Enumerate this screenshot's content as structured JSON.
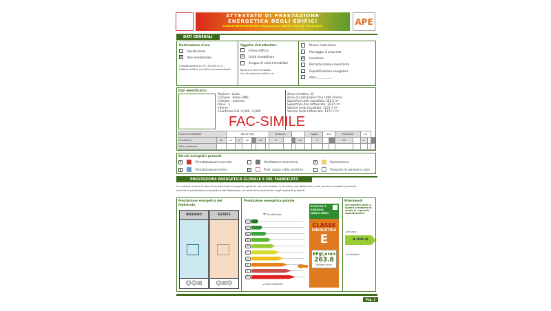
{
  "header": {
    "title_line1": "ATTESTATO DI PRESTAZIONE",
    "title_line2": "ENERGETICA DEGLI EDIFICI",
    "code_line": "CODICE IDENTIFICATIVO: xxxxxxxxxxxx  VALIDO FINO AL: 31/12/2017",
    "logo": "APE"
  },
  "dati_generali": {
    "tab": "DATI GENERALI",
    "destinazione": {
      "title": "Destinazione d'uso",
      "options": [
        {
          "label": "Residenziale",
          "checked": false
        },
        {
          "label": "Non residenziale",
          "checked": true
        }
      ],
      "classification": "Classificazione D.P.R. 412/93: E.2 -",
      "classification2": "Edificio adibito ad ufficio ed assimilabili"
    },
    "oggetto": {
      "title": "Oggetto dell'attestato",
      "options": [
        {
          "label": "Intero edificio",
          "checked": false
        },
        {
          "label": "Unità immobiliare",
          "checked": true
        },
        {
          "label": "Gruppo di unità immobiliari",
          "checked": false
        }
      ],
      "note1": "Numero di unità immobiliari",
      "note2": "di cui è composto l'edificio: nd"
    },
    "motivo": {
      "options": [
        {
          "label": "Nuova costruzione",
          "checked": false
        },
        {
          "label": "Passaggio di proprietà",
          "checked": false
        },
        {
          "label": "Locazione",
          "checked": true
        },
        {
          "label": "Ristrutturazione importante",
          "checked": false
        },
        {
          "label": "Riqualificazione energetica",
          "checked": false
        },
        {
          "label": "Altro: __________",
          "checked": false
        }
      ]
    }
  },
  "identificativi": {
    "title": "Dati identificativi",
    "left": [
      "Regione : Lazio",
      "Comune : Roma (RM)",
      "Indirizzo : xxxxxxx",
      "Piano : x",
      "Interno :",
      "Coordinate GIS: 0,000 - 0,000"
    ],
    "right": [
      "Zona climatica : D",
      "Anno di costruzione: fino 1900 (stimo)",
      "Superficie utile riscaldata: 303.5 m²",
      "Superficie utile raffrescata: 303.5 m²",
      "Volume lordo riscaldato: 1272.7 m³",
      "Volume lordo raffrescato: 1272.7 m³"
    ],
    "watermark": "FAC-SIMILE",
    "catasto_row": [
      "Comune catastale",
      "Roma (RM)",
      "Sezione",
      "",
      "Foglio",
      "xxx",
      "Particella",
      "xx"
    ],
    "subalterni_row": [
      "Subalterni",
      "da",
      "xx",
      "a",
      "xx",
      "",
      "da",
      "",
      "a",
      "",
      "",
      "da",
      "",
      "a",
      "",
      "da",
      "",
      "a",
      ""
    ],
    "altri_label": "Altri subalterni"
  },
  "servizi": {
    "title": "Servizi energetici presenti",
    "items": [
      {
        "label": "Climatizzazione invernale",
        "checked": true,
        "icon": "radiator-icon"
      },
      {
        "label": "Ventilazione meccanica",
        "checked": false,
        "icon": "fan-icon"
      },
      {
        "label": "Illuminazione",
        "checked": true,
        "icon": "lightbulb-icon"
      },
      {
        "label": "Climatizzazione estiva",
        "checked": true,
        "icon": "air-conditioner-icon"
      },
      {
        "label": "Prod. acqua calda sanitaria",
        "checked": true,
        "icon": "faucet-icon"
      },
      {
        "label": "Trasporto di persone o cose",
        "checked": false,
        "icon": "elevator-icon"
      }
    ]
  },
  "prestazione": {
    "tab": "PRESTAZIONE ENERGETICA GLOBALE  E DEL FABBRICATO",
    "intro1": "La sezione riporta l'indice di prestazione energetica globale non rinnovabile in funzione del fabbricato e dei servizi energetici presenti,",
    "intro2": "nonché la prestazione energetica del fabbricato, al netto del rendimento degli impianti presenti.",
    "fabbricato": {
      "title1": "Prestazione energetica del",
      "title2": "fabbricato",
      "inverno": "INVERNO",
      "estate": "ESTATE"
    },
    "globale": {
      "title": "Prestazione energetica globale",
      "piu": "Più efficiente",
      "meno": "Meno efficiente",
      "classes": [
        "A4",
        "A3",
        "A2",
        "A1",
        "B",
        "C",
        "D",
        "E",
        "F",
        "G"
      ],
      "colors": [
        "#1f7a1f",
        "#2e8b2e",
        "#3aa33a",
        "#5cb82e",
        "#9acd32",
        "#d8dc2a",
        "#f2c21a",
        "#e8801a",
        "#c8504a",
        "#e02020"
      ],
      "current_class": "E",
      "nzeb": "EDIFICIO A ENERGIA QUASI ZERO",
      "classe_label1": "CLASSE",
      "classe_label2": "ENERGETICA",
      "ep_label": "EPgl,nren",
      "ep_value": "263.8",
      "ep_unit": "kWh/m² anno"
    },
    "riferimenti": {
      "title": "Riferimenti",
      "text": [
        "Gli immobili simili a",
        "questo avrebbero in",
        "media la seguente",
        "classificazione:"
      ],
      "nuovi": "Se nuovi:",
      "nuovi_value": "B (106.4)",
      "esistenti": "Se esistenti:"
    }
  },
  "footer": {
    "page": "Pag. 1"
  }
}
